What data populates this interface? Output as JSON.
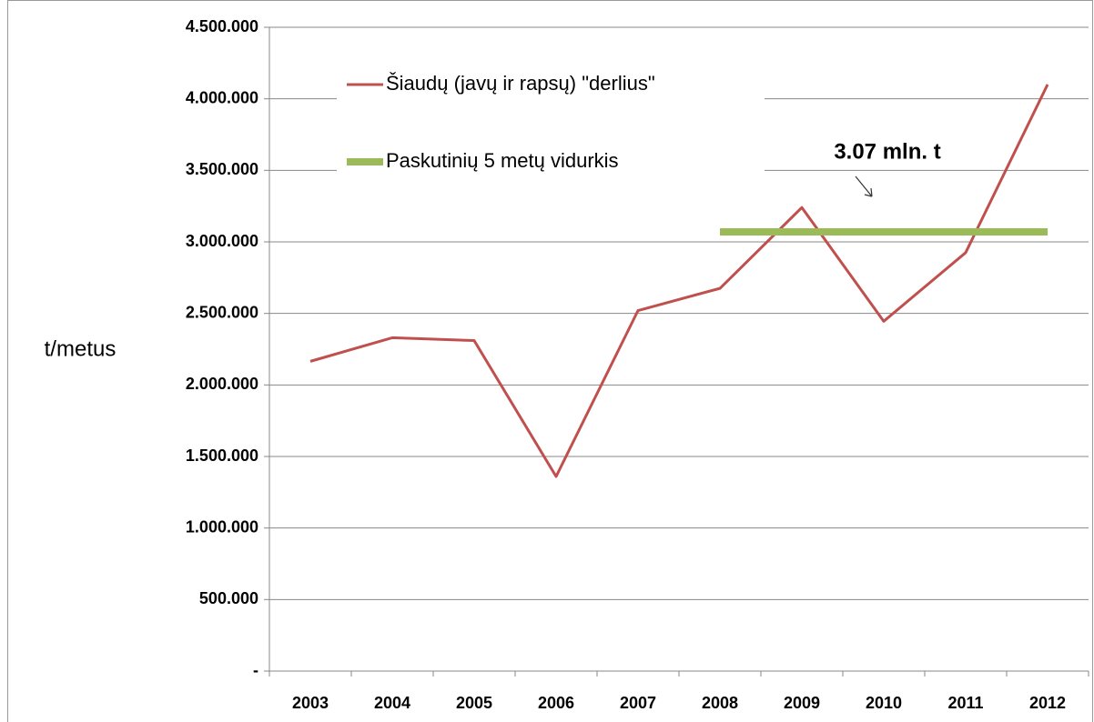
{
  "chart_data": {
    "type": "line",
    "y_label": "t/metus",
    "annotation": "3.07 mln. t",
    "categories": [
      "2003",
      "2004",
      "2005",
      "2006",
      "2007",
      "2008",
      "2009",
      "2010",
      "2011",
      "2012"
    ],
    "series": [
      {
        "name": "Šiaudų (javų ir rapsų) \"derlius\"",
        "color": "#c0504d",
        "width": 3,
        "values": [
          2165000,
          2330000,
          2310000,
          1360000,
          2520000,
          2675000,
          3240000,
          2445000,
          2925000,
          4100000
        ]
      },
      {
        "name": "Paskutinių 5 metų vidurkis",
        "color": "#9bbb59",
        "width": 8,
        "values": [
          null,
          null,
          null,
          null,
          null,
          3070000,
          3070000,
          3070000,
          3070000,
          3070000
        ]
      }
    ],
    "ylim": [
      0,
      4500000
    ],
    "yticks": [
      {
        "value": 0,
        "label": "-"
      },
      {
        "value": 500000,
        "label": "500.000"
      },
      {
        "value": 1000000,
        "label": "1.000.000"
      },
      {
        "value": 1500000,
        "label": "1.500.000"
      },
      {
        "value": 2000000,
        "label": "2.000.000"
      },
      {
        "value": 2500000,
        "label": "2.500.000"
      },
      {
        "value": 3000000,
        "label": "3.000.000"
      },
      {
        "value": 3500000,
        "label": "3.500.000"
      },
      {
        "value": 4000000,
        "label": "4.000.000"
      },
      {
        "value": 4500000,
        "label": "4.500.000"
      }
    ],
    "grid": true
  }
}
